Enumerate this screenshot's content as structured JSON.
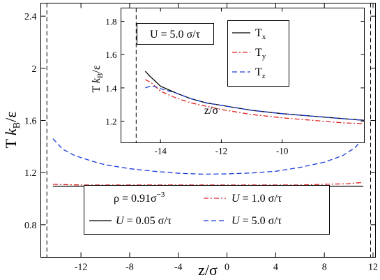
{
  "chart_data": [
    {
      "type": "line",
      "xlabel": "z/σ",
      "ylabel": "T k_B/ε",
      "xlim": [
        -15.3,
        12.2
      ],
      "ylim": [
        0.55,
        2.5
      ],
      "xticks": [
        -12,
        -8,
        -4,
        0,
        4,
        8,
        12
      ],
      "xtick_labels": [
        "-12",
        "-8",
        "-4",
        "0",
        "4",
        "8",
        "12"
      ],
      "yticks": [
        0.8,
        1.2,
        1.6,
        2.0,
        2.4
      ],
      "ytick_labels": [
        "0.8",
        "1.2",
        "1.6",
        "2",
        "2.4"
      ],
      "vlines": [
        -14.8,
        11.8
      ],
      "legend": {
        "placement": "bottom-center",
        "title_text": "ρ = 0.91σ",
        "title_sup": "−3",
        "entries_prefix": "U",
        "entries_suffix": "σ/τ"
      },
      "series": [
        {
          "name": "0.05",
          "color": "#000000",
          "dash": "solid",
          "x": [
            -14.3,
            -12,
            -10,
            -8,
            -6,
            -4,
            -2,
            0,
            2,
            4,
            6,
            8,
            10,
            11.2
          ],
          "y": [
            1.095,
            1.095,
            1.095,
            1.095,
            1.095,
            1.095,
            1.095,
            1.095,
            1.095,
            1.095,
            1.095,
            1.095,
            1.095,
            1.095
          ]
        },
        {
          "name": "1.0",
          "color": "#e02020",
          "dash": "dashdot",
          "x": [
            -14.3,
            -12,
            -10,
            -8,
            -6,
            -4,
            -2,
            0,
            2,
            4,
            6,
            8,
            10,
            11.2
          ],
          "y": [
            1.11,
            1.105,
            1.105,
            1.105,
            1.105,
            1.105,
            1.105,
            1.105,
            1.105,
            1.105,
            1.105,
            1.11,
            1.115,
            1.125
          ]
        },
        {
          "name": "5.0",
          "color": "#1a3ad8",
          "dash": "dashed",
          "x": [
            -14.3,
            -13.5,
            -12.5,
            -11,
            -10,
            -8,
            -6,
            -4,
            -2,
            0,
            2,
            4,
            6,
            8,
            9.5,
            10.5,
            11.2
          ],
          "y": [
            1.46,
            1.38,
            1.33,
            1.285,
            1.26,
            1.23,
            1.21,
            1.195,
            1.188,
            1.19,
            1.197,
            1.21,
            1.24,
            1.28,
            1.33,
            1.39,
            1.46
          ]
        }
      ]
    },
    {
      "type": "line",
      "annotation_text": "U = 5.0 σ/τ",
      "xlabel": "z/σ",
      "ylabel": "T k_B/ε",
      "xlim": [
        -15.3,
        -7.3
      ],
      "ylim": [
        1.07,
        1.88
      ],
      "xticks": [
        -14,
        -12,
        -10
      ],
      "xtick_labels": [
        "-14",
        "-12",
        "-10"
      ],
      "yticks": [
        1.2,
        1.4,
        1.6,
        1.8
      ],
      "ytick_labels": [
        "1.2",
        "1.4",
        "1.6",
        "1.8"
      ],
      "vlines": [
        -14.8
      ],
      "legend": {
        "placement": "top-right"
      },
      "series": [
        {
          "name": "Tx",
          "label_main": "T",
          "label_sub": "x",
          "color": "#000000",
          "dash": "solid",
          "x": [
            -14.5,
            -14.35,
            -14.2,
            -14.0,
            -13.5,
            -13.0,
            -12.5,
            -12.0,
            -11.0,
            -10.0,
            -9.0,
            -8.0,
            -7.3
          ],
          "y": [
            1.5,
            1.47,
            1.445,
            1.41,
            1.37,
            1.335,
            1.31,
            1.295,
            1.265,
            1.245,
            1.23,
            1.215,
            1.205
          ]
        },
        {
          "name": "Ty",
          "label_main": "T",
          "label_sub": "y",
          "color": "#e02020",
          "dash": "dashdot",
          "x": [
            -14.5,
            -14.3,
            -14.0,
            -13.5,
            -13.0,
            -12.5,
            -12.0,
            -11.0,
            -10.0,
            -9.0,
            -8.0,
            -7.3
          ],
          "y": [
            1.45,
            1.43,
            1.38,
            1.34,
            1.31,
            1.29,
            1.27,
            1.24,
            1.22,
            1.205,
            1.19,
            1.185
          ]
        },
        {
          "name": "Tz",
          "label_main": "T",
          "label_sub": "z",
          "color": "#1a3ad8",
          "dash": "dashed",
          "x": [
            -14.5,
            -14.35,
            -14.2,
            -14.0,
            -13.5,
            -13.0,
            -12.5,
            -12.0,
            -11.0,
            -10.0,
            -9.0,
            -8.0,
            -7.3
          ],
          "y": [
            1.4,
            1.41,
            1.41,
            1.395,
            1.37,
            1.335,
            1.31,
            1.295,
            1.265,
            1.245,
            1.23,
            1.215,
            1.205
          ]
        }
      ]
    }
  ]
}
